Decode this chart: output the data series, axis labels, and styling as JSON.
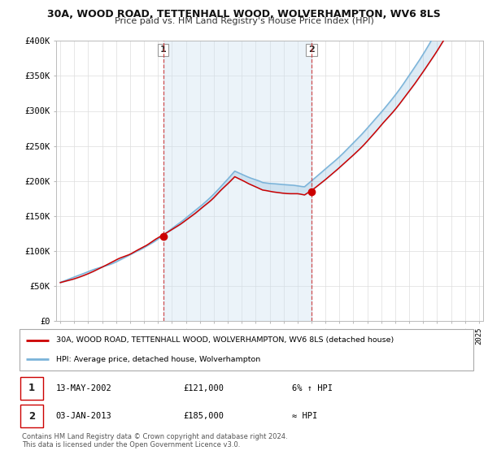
{
  "title_line1": "30A, WOOD ROAD, TETTENHALL WOOD, WOLVERHAMPTON, WV6 8LS",
  "title_line2": "Price paid vs. HM Land Registry's House Price Index (HPI)",
  "ylabel_values": [
    "£0",
    "£50K",
    "£100K",
    "£150K",
    "£200K",
    "£250K",
    "£300K",
    "£350K",
    "£400K"
  ],
  "ylim": [
    0,
    400000
  ],
  "yticks": [
    0,
    50000,
    100000,
    150000,
    200000,
    250000,
    300000,
    350000,
    400000
  ],
  "sale1_year": 2002.37,
  "sale1_price": 121000,
  "sale1_label": "1",
  "sale1_date": "13-MAY-2002",
  "sale1_hpi_diff": "6% ↑ HPI",
  "sale2_year": 2013.01,
  "sale2_price": 185000,
  "sale2_label": "2",
  "sale2_date": "03-JAN-2013",
  "sale2_hpi_diff": "≈ HPI",
  "legend_line1": "30A, WOOD ROAD, TETTENHALL WOOD, WOLVERHAMPTON, WV6 8LS (detached house)",
  "legend_line2": "HPI: Average price, detached house, Wolverhampton",
  "footer_line1": "Contains HM Land Registry data © Crown copyright and database right 2024.",
  "footer_line2": "This data is licensed under the Open Government Licence v3.0.",
  "hpi_color": "#7ab3d9",
  "price_color": "#cc0000",
  "bg_color": "#ffffff",
  "grid_color": "#dddddd",
  "fill_color": "#c8dff0",
  "dashed_color": "#cc3333"
}
